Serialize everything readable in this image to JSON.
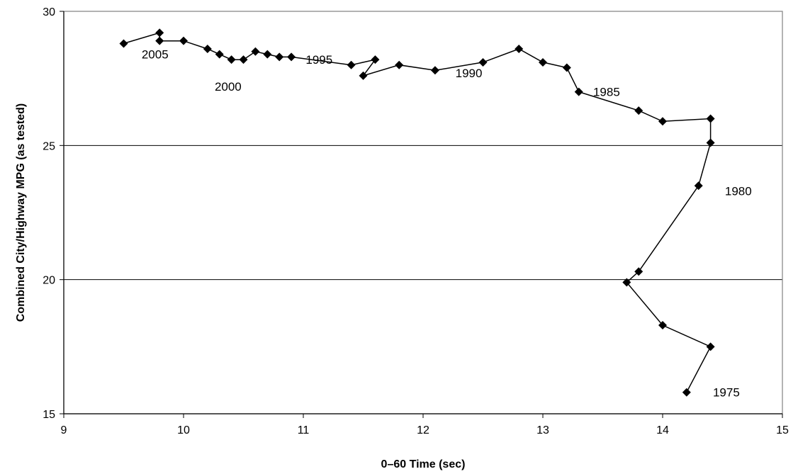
{
  "chart_data": {
    "type": "scatter",
    "title": "",
    "xlabel": "0–60 Time (sec)",
    "ylabel": "Combined City/Highway MPG (as tested)",
    "xlim": [
      9,
      15
    ],
    "ylim": [
      15,
      30
    ],
    "xticks": [
      9,
      10,
      11,
      12,
      13,
      14,
      15
    ],
    "yticks": [
      15,
      20,
      25,
      30
    ],
    "grid": "horizontal",
    "legend": "none",
    "line_color": "#000000",
    "marker": "diamond",
    "series": [
      {
        "x": [
          14.2,
          14.4,
          14.0,
          13.7,
          13.8,
          14.3,
          14.4,
          14.4,
          14.0,
          13.8,
          13.3,
          13.2,
          13.0,
          12.8,
          12.5,
          12.1,
          11.8,
          11.5,
          11.6,
          11.4,
          10.9,
          10.8,
          10.7,
          10.6,
          10.5,
          10.4,
          10.3,
          10.2,
          10.0,
          9.8,
          9.8,
          9.5
        ],
        "y": [
          15.8,
          17.5,
          18.3,
          19.9,
          20.3,
          23.5,
          25.1,
          26.0,
          25.9,
          26.3,
          27.0,
          27.9,
          28.1,
          28.6,
          28.1,
          27.8,
          28.0,
          27.6,
          28.2,
          28.0,
          28.3,
          28.3,
          28.4,
          28.5,
          28.2,
          28.2,
          28.4,
          28.6,
          28.9,
          28.9,
          29.2,
          28.8
        ]
      }
    ],
    "annotations": [
      {
        "text": "1975",
        "x": 14.42,
        "y": 15.8
      },
      {
        "text": "1980",
        "x": 14.52,
        "y": 23.3
      },
      {
        "text": "1985",
        "x": 13.42,
        "y": 27.0
      },
      {
        "text": "1990",
        "x": 12.27,
        "y": 27.7
      },
      {
        "text": "1995",
        "x": 11.02,
        "y": 28.2
      },
      {
        "text": "2000",
        "x": 10.26,
        "y": 27.2
      },
      {
        "text": "2005",
        "x": 9.65,
        "y": 28.4
      }
    ]
  }
}
